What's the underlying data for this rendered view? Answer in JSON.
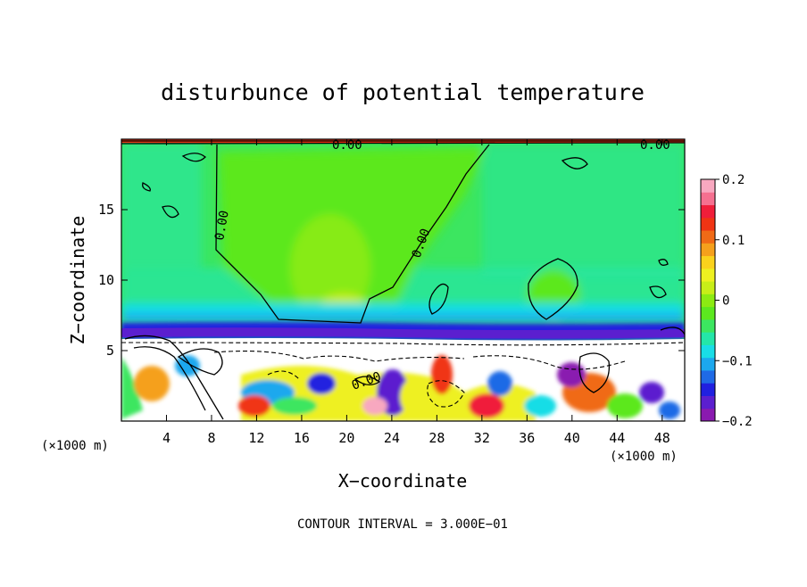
{
  "chart_data": {
    "type": "heatmap",
    "title": "disturbunce of potential temperature",
    "xlabel": "X−coordinate",
    "ylabel": "Z−coordinate",
    "x_unit_left": "(×1000 m)",
    "x_unit_right": "(×1000 m)",
    "xlim": [
      0,
      50
    ],
    "ylim": [
      0,
      20
    ],
    "x_ticks": [
      4,
      8,
      12,
      16,
      20,
      24,
      28,
      32,
      36,
      40,
      44,
      48
    ],
    "y_ticks": [
      5,
      10,
      15
    ],
    "colorbar": {
      "range": [
        -0.2,
        0.2
      ],
      "tick_labels": [
        {
          "value": 0.2,
          "label": "0.2"
        },
        {
          "value": 0.1,
          "label": "0.1"
        },
        {
          "value": 0.0,
          "label": "0"
        },
        {
          "value": -0.1,
          "label": "−0.1"
        },
        {
          "value": -0.2,
          "label": "−0.2"
        }
      ],
      "colors": [
        "#8a1ab0",
        "#5b1fcf",
        "#2020e0",
        "#1f6ae6",
        "#1ca8ee",
        "#19dde6",
        "#24e6a8",
        "#3ce660",
        "#5ce81f",
        "#8ceb12",
        "#c8ee18",
        "#eef020",
        "#fad21c",
        "#f5a01c",
        "#f06a16",
        "#f03414",
        "#f01e3a",
        "#f57090",
        "#f8a8c0"
      ]
    },
    "contour_labels": [
      "0.00",
      "0.00",
      "0.00",
      "0.00",
      "0.00"
    ],
    "annotation": "CONTOUR INTERVAL = 3.000E−01"
  }
}
